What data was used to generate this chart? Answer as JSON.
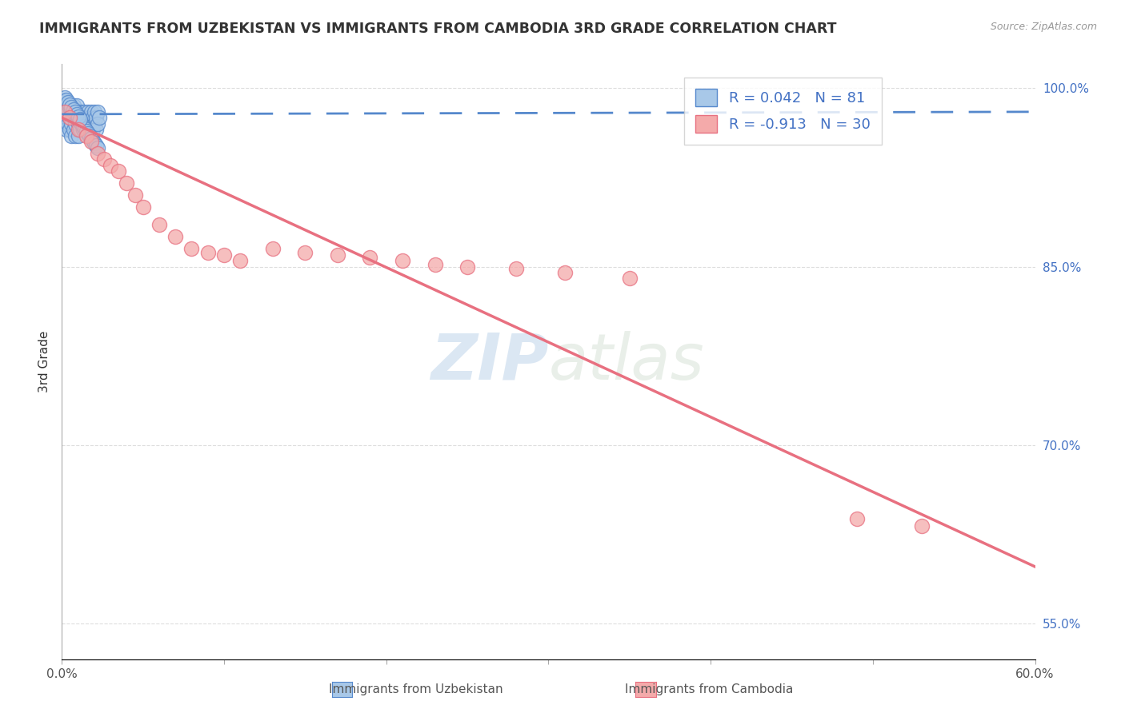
{
  "title": "IMMIGRANTS FROM UZBEKISTAN VS IMMIGRANTS FROM CAMBODIA 3RD GRADE CORRELATION CHART",
  "source": "Source: ZipAtlas.com",
  "ylabel": "3rd Grade",
  "xlim": [
    0.0,
    0.6
  ],
  "ylim": [
    0.52,
    1.02
  ],
  "legend_r_uzbekistan": "R = 0.042",
  "legend_n_uzbekistan": "N = 81",
  "legend_r_cambodia": "R = -0.913",
  "legend_n_cambodia": "N = 30",
  "uzbekistan_color": "#A8C8E8",
  "cambodia_color": "#F4AAAA",
  "uzbekistan_line_color": "#5588CC",
  "cambodia_line_color": "#E87080",
  "background_color": "#FFFFFF",
  "grid_color": "#CCCCCC",
  "title_color": "#333333",
  "watermark_zip": "ZIP",
  "watermark_atlas": "atlas",
  "legend_text_color": "#4472C4",
  "uzbekistan_x": [
    0.001,
    0.002,
    0.002,
    0.003,
    0.003,
    0.003,
    0.004,
    0.004,
    0.005,
    0.005,
    0.005,
    0.006,
    0.006,
    0.006,
    0.007,
    0.007,
    0.007,
    0.008,
    0.008,
    0.008,
    0.009,
    0.009,
    0.01,
    0.01,
    0.01,
    0.011,
    0.011,
    0.012,
    0.012,
    0.013,
    0.013,
    0.014,
    0.014,
    0.015,
    0.015,
    0.016,
    0.016,
    0.017,
    0.017,
    0.018,
    0.018,
    0.019,
    0.019,
    0.02,
    0.02,
    0.021,
    0.021,
    0.022,
    0.022,
    0.023,
    0.002,
    0.003,
    0.004,
    0.005,
    0.006,
    0.007,
    0.008,
    0.009,
    0.01,
    0.011,
    0.012,
    0.013,
    0.014,
    0.015,
    0.016,
    0.017,
    0.018,
    0.019,
    0.02,
    0.021,
    0.022,
    0.002,
    0.003,
    0.004,
    0.005,
    0.006,
    0.007,
    0.008,
    0.009,
    0.01,
    0.011
  ],
  "uzbekistan_y": [
    0.975,
    0.98,
    0.97,
    0.985,
    0.975,
    0.965,
    0.98,
    0.97,
    0.985,
    0.975,
    0.965,
    0.98,
    0.97,
    0.96,
    0.985,
    0.975,
    0.965,
    0.98,
    0.97,
    0.96,
    0.985,
    0.975,
    0.98,
    0.97,
    0.96,
    0.975,
    0.965,
    0.98,
    0.97,
    0.975,
    0.965,
    0.98,
    0.97,
    0.975,
    0.965,
    0.98,
    0.97,
    0.975,
    0.965,
    0.98,
    0.97,
    0.975,
    0.965,
    0.98,
    0.97,
    0.975,
    0.965,
    0.98,
    0.97,
    0.975,
    0.99,
    0.988,
    0.986,
    0.984,
    0.982,
    0.98,
    0.978,
    0.976,
    0.974,
    0.972,
    0.97,
    0.968,
    0.966,
    0.964,
    0.962,
    0.96,
    0.958,
    0.956,
    0.954,
    0.952,
    0.95,
    0.992,
    0.99,
    0.988,
    0.986,
    0.984,
    0.982,
    0.98,
    0.978,
    0.976,
    0.974
  ],
  "cambodia_x": [
    0.002,
    0.005,
    0.01,
    0.015,
    0.018,
    0.022,
    0.026,
    0.03,
    0.035,
    0.04,
    0.045,
    0.05,
    0.06,
    0.07,
    0.08,
    0.09,
    0.1,
    0.11,
    0.13,
    0.15,
    0.17,
    0.19,
    0.21,
    0.23,
    0.25,
    0.28,
    0.31,
    0.35,
    0.49,
    0.53
  ],
  "cambodia_y": [
    0.98,
    0.975,
    0.965,
    0.96,
    0.955,
    0.945,
    0.94,
    0.935,
    0.93,
    0.92,
    0.91,
    0.9,
    0.885,
    0.875,
    0.865,
    0.862,
    0.86,
    0.855,
    0.865,
    0.862,
    0.86,
    0.858,
    0.855,
    0.852,
    0.85,
    0.848,
    0.845,
    0.84,
    0.638,
    0.632
  ],
  "uzb_trend_x": [
    0.0,
    0.6
  ],
  "uzb_trend_y": [
    0.978,
    0.98
  ],
  "cam_trend_x": [
    0.0,
    0.6
  ],
  "cam_trend_y": [
    0.975,
    0.598
  ]
}
